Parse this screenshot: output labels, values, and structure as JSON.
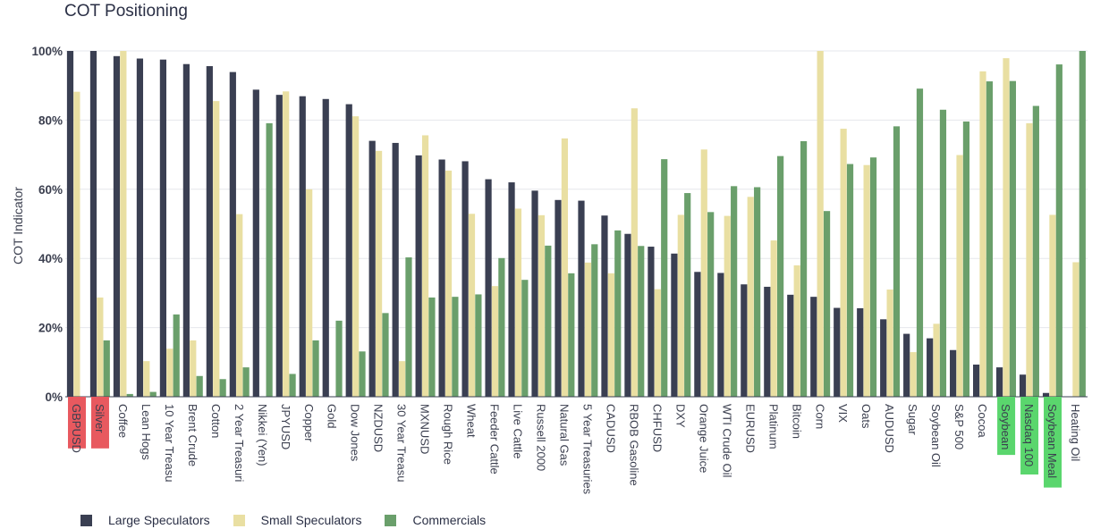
{
  "chart_data": {
    "type": "bar",
    "title": "COT Positioning",
    "xlabel": "",
    "ylabel": "COT Indicator",
    "ylim": [
      0,
      100
    ],
    "yticks": [
      "0%",
      "20%",
      "40%",
      "60%",
      "80%",
      "100%"
    ],
    "grid": true,
    "legend_position": "bottom-left",
    "categories": [
      "GBPUSD",
      "Silver",
      "Coffee",
      "Lean Hogs",
      "10 Year Treasu",
      "Brent Crude",
      "Cotton",
      "2 Year Treasuri",
      "Nikkei (Yen)",
      "JPYUSD",
      "Copper",
      "Gold",
      "Dow Jones",
      "NZDUSD",
      "30 Year Treasu",
      "MXNUSD",
      "Rough Rice",
      "Wheat",
      "Feeder Cattle",
      "Live Cattle",
      "Russell 2000",
      "Natural Gas",
      "5 Year Treasuries",
      "CADUSD",
      "RBOB Gasoline",
      "CHFUSD",
      "DXY",
      "Orange Juice",
      "WTI Crude Oil",
      "EURUSD",
      "Platinum",
      "Bitcoin",
      "Corn",
      "VIX",
      "Oats",
      "AUDUSD",
      "Sugar",
      "Soybean Oil",
      "S&P 500",
      "Cocoa",
      "Soybean",
      "Nasdaq 100",
      "Soybean Meal",
      "Heating Oil"
    ],
    "highlights": {
      "GBPUSD": "#e8595f",
      "Silver": "#e8595f",
      "Soybean": "#5ad66d",
      "Nasdaq 100": "#5ad66d",
      "Soybean Meal": "#5ad66d"
    },
    "series": [
      {
        "name": "Large Speculators",
        "color": "#3a3f52",
        "values": [
          100,
          100,
          98.5,
          97.8,
          97.5,
          96.2,
          95.6,
          93.9,
          88.8,
          87.3,
          86.9,
          86.1,
          84.6,
          74,
          73.4,
          69.8,
          68.6,
          68.1,
          62.9,
          62,
          59.6,
          56.9,
          56.7,
          52.4,
          47.1,
          43.4,
          41.4,
          36.1,
          35.8,
          32.5,
          31.8,
          29.5,
          28.9,
          25.7,
          25.6,
          22.4,
          18.2,
          16.9,
          13.5,
          9.3,
          8.5,
          6.4,
          1.1,
          0
        ]
      },
      {
        "name": "Small Speculators",
        "color": "#e9dfa2",
        "values": [
          88.2,
          28.7,
          100,
          10.3,
          13.9,
          16.3,
          85.5,
          52.8,
          0,
          88.3,
          60,
          0,
          81.1,
          71.1,
          10.3,
          75.6,
          65.4,
          52.9,
          32,
          54.4,
          52.5,
          74.7,
          38.8,
          35.7,
          83.4,
          31.1,
          52.6,
          71.5,
          52.3,
          57.8,
          45.2,
          38,
          100,
          77.5,
          67,
          31,
          12.9,
          21.1,
          69.9,
          94.1,
          97.9,
          79.1,
          52.6,
          38.9
        ]
      },
      {
        "name": "Commercials",
        "color": "#6a9f6b",
        "values": [
          0,
          16.3,
          0.8,
          1.4,
          23.8,
          6,
          5.1,
          8.5,
          79.1,
          6.6,
          16.3,
          22,
          13.1,
          24.2,
          40.3,
          28.7,
          28.9,
          29.6,
          40.1,
          33.8,
          43.7,
          35.7,
          44.1,
          48.1,
          43.6,
          68.7,
          58.9,
          53.4,
          60.9,
          60.6,
          69.6,
          73.9,
          53.7,
          67.3,
          69.2,
          78.2,
          89.1,
          83,
          79.6,
          91.2,
          91.3,
          84.1,
          96.1,
          100
        ]
      }
    ]
  }
}
